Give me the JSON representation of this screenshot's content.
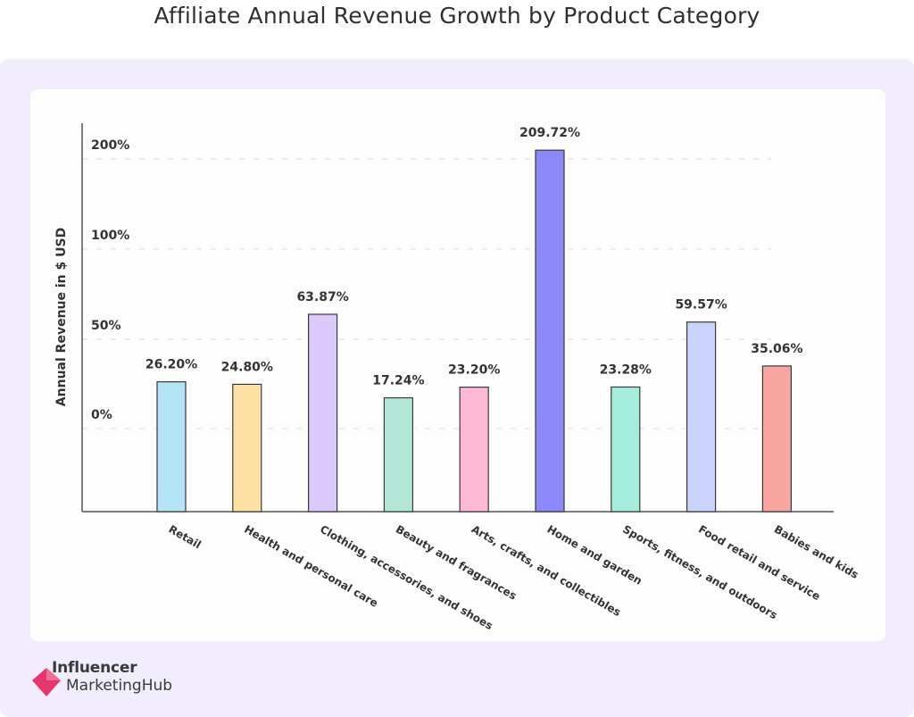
{
  "title": "Affiliate Annual Revenue Growth by Product Category",
  "brand": {
    "line1": "Influencer",
    "line2": "MarketingHub",
    "accent": "#e8356d"
  },
  "colors": {
    "background": "#f1edfc",
    "card": "#fdfdfd"
  },
  "chart_data": {
    "type": "bar",
    "title": "Affiliate Annual Revenue Growth by Product Category",
    "ylabel": "Annual Revenue in $ USD",
    "xlabel": "",
    "y_ticks": [
      "0%",
      "50%",
      "100%",
      "200%"
    ],
    "grid": true,
    "categories": [
      "Retail",
      "Health and personal care",
      "Clothing, accessories, and shoes",
      "Beauty and fragrances",
      "Arts, crafts, and collectibles",
      "Home and garden",
      "Sports, fitness, and outdoors",
      "Food retail and service",
      "Babies and kids"
    ],
    "values": [
      26.2,
      24.8,
      63.87,
      17.24,
      23.2,
      209.72,
      23.28,
      59.57,
      35.06
    ],
    "value_labels": [
      "26.20%",
      "24.80%",
      "63.87%",
      "17.24%",
      "23.20%",
      "209.72%",
      "23.28%",
      "59.57%",
      "35.06%"
    ],
    "bar_colors": [
      "#b3e3f5",
      "#fde0a3",
      "#dcc9fb",
      "#b2e7d8",
      "#fdb9d4",
      "#8a88fb",
      "#a4ecdc",
      "#c9d3fc",
      "#f9a5a2"
    ]
  }
}
